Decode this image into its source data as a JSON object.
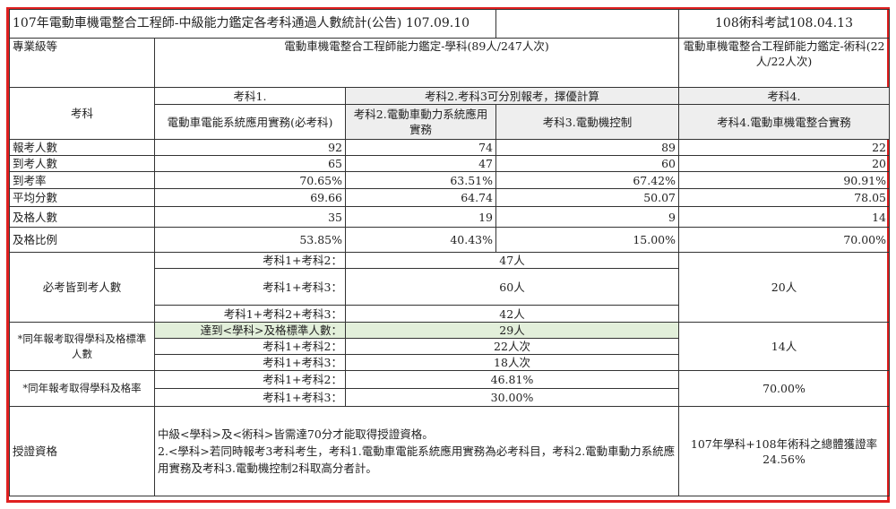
{
  "header": {
    "title": "107年電動車機電整合工程師-中級能力鑑定各考科通過人數統計(公告) 107.09.10",
    "practical_date": "108術科考試108.04.13"
  },
  "level": {
    "label": "專業級等",
    "academic": "電動車機電整合工程師能力鑑定-學科(89人/247人次)",
    "practical": "電動車機電整合工程師能力鑑定-術科(22人/22人次)"
  },
  "subjects": {
    "label": "考科",
    "group1": "考科1.",
    "group23": "考科2.考科3可分別報考，擇優計算",
    "group4": "考科4.",
    "names": [
      "電動車電能系統應用實務(必考科)",
      "考科2.電動車動力系統應用實務",
      "考科3.電動機控制",
      "考科4.電動車機電整合實務"
    ]
  },
  "stats": [
    {
      "label": "報考人數",
      "values": [
        "92",
        "74",
        "89",
        "22"
      ]
    },
    {
      "label": "到考人數",
      "values": [
        "65",
        "47",
        "60",
        "20"
      ]
    },
    {
      "label": "到考率",
      "values": [
        "70.65%",
        "63.51%",
        "67.42%",
        "90.91%"
      ]
    },
    {
      "label": "平均分數",
      "values": [
        "69.66",
        "64.74",
        "50.07",
        "78.05"
      ]
    },
    {
      "label": "及格人數",
      "values": [
        "35",
        "19",
        "9",
        "14"
      ]
    },
    {
      "label": "及格比例",
      "values": [
        "53.85%",
        "40.43%",
        "15.00%",
        "70.00%"
      ]
    }
  ],
  "attended": {
    "label": "必考皆到考人數",
    "rows": [
      {
        "label": "考科1+考科2：",
        "value": "47人"
      },
      {
        "label": "考科1+考科3：",
        "value": "60人"
      },
      {
        "label": "考科1+考科2+考科3：",
        "value": "42人"
      }
    ],
    "practical": "20人"
  },
  "passed": {
    "label": "*同年報考取得學科及格標準人數",
    "rows": [
      {
        "label": "達到<學科>及格標準人數：",
        "value": "29人"
      },
      {
        "label": "考科1+考科2：",
        "value": "22人次"
      },
      {
        "label": "考科1+考科3：",
        "value": "18人次"
      }
    ],
    "practical": "14人"
  },
  "pass_rate": {
    "label": "*同年報考取得學科及格率",
    "rows": [
      {
        "label": "考科1+考科2：",
        "value": "46.81%"
      },
      {
        "label": "考科1+考科3：",
        "value": "30.00%"
      }
    ],
    "practical": "70.00%"
  },
  "certification": {
    "label": "授證資格",
    "line1": "中級<學科>及<術科>皆需達70分才能取得授證資格。",
    "line2": "2.<學科>若同時報考3考科考生，考科1.電動車電能系統應用實務為必考科目，考科2.電動車動力系統應用實務及考科3.電動機控制2科取高分者計。",
    "overall_label": "107年學科+108年術科之總體獲證率",
    "overall_value": "24.56%"
  },
  "colors": {
    "frame": "#e02020",
    "header_gray": "#eeeeee",
    "highlight_green": "#e2efda"
  }
}
